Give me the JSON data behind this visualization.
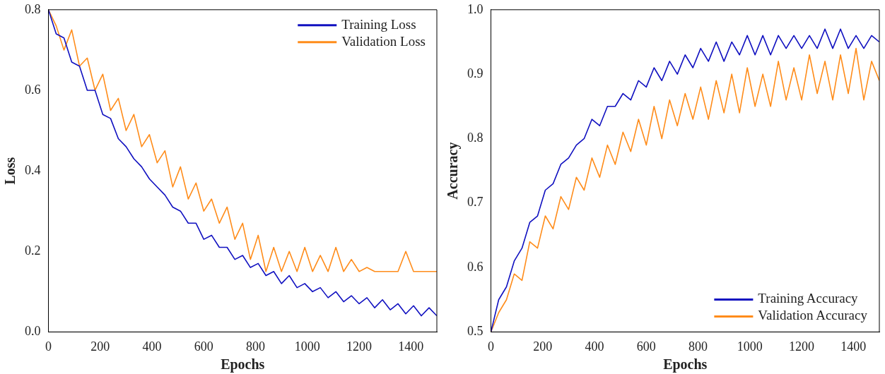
{
  "chart_data": [
    {
      "type": "line",
      "xlabel": "Epochs",
      "ylabel": "Loss",
      "xlim": [
        0,
        1500
      ],
      "xticks": [
        0,
        200,
        400,
        600,
        800,
        1000,
        1200,
        1400
      ],
      "ylim": [
        0,
        0.8
      ],
      "yticks": [
        {
          "value": 0,
          "label": "0.0"
        },
        0.2,
        0.4,
        0.6,
        0.8
      ],
      "grid": false,
      "legend": "top right",
      "marker": "none",
      "line_style": "solid",
      "x": [
        0,
        30,
        60,
        90,
        120,
        150,
        180,
        210,
        240,
        270,
        300,
        330,
        360,
        390,
        420,
        450,
        480,
        510,
        540,
        570,
        600,
        630,
        660,
        690,
        720,
        750,
        780,
        810,
        840,
        870,
        900,
        930,
        960,
        990,
        1020,
        1050,
        1080,
        1110,
        1140,
        1170,
        1200,
        1230,
        1260,
        1290,
        1320,
        1350,
        1380,
        1410,
        1440,
        1470,
        1500
      ],
      "series": [
        {
          "name": "Training Loss",
          "color": "#1010c0",
          "values": [
            0.8,
            0.74,
            0.73,
            0.67,
            0.66,
            0.6,
            0.6,
            0.54,
            0.53,
            0.48,
            0.46,
            0.43,
            0.41,
            0.38,
            0.36,
            0.34,
            0.31,
            0.3,
            0.27,
            0.27,
            0.23,
            0.24,
            0.21,
            0.21,
            0.18,
            0.19,
            0.16,
            0.17,
            0.14,
            0.15,
            0.12,
            0.14,
            0.11,
            0.12,
            0.1,
            0.11,
            0.085,
            0.1,
            0.075,
            0.09,
            0.07,
            0.085,
            0.06,
            0.08,
            0.055,
            0.07,
            0.045,
            0.065,
            0.04,
            0.06,
            0.04
          ]
        },
        {
          "name": "Validation Loss",
          "color": "#ff8c1a",
          "values": [
            0.8,
            0.76,
            0.7,
            0.75,
            0.66,
            0.68,
            0.6,
            0.64,
            0.55,
            0.58,
            0.5,
            0.54,
            0.46,
            0.49,
            0.42,
            0.45,
            0.36,
            0.41,
            0.33,
            0.37,
            0.3,
            0.33,
            0.27,
            0.31,
            0.23,
            0.27,
            0.18,
            0.24,
            0.15,
            0.21,
            0.15,
            0.2,
            0.15,
            0.21,
            0.15,
            0.19,
            0.15,
            0.21,
            0.15,
            0.18,
            0.15,
            0.16,
            0.15,
            0.15,
            0.15,
            0.15,
            0.2,
            0.15,
            0.15,
            0.15,
            0.15
          ]
        }
      ]
    },
    {
      "type": "line",
      "xlabel": "Epochs",
      "ylabel": "Accuracy",
      "xlim": [
        0,
        1500
      ],
      "xticks": [
        0,
        200,
        400,
        600,
        800,
        1000,
        1200,
        1400
      ],
      "ylim": [
        0.5,
        1.0
      ],
      "yticks": [
        0.5,
        0.6,
        0.7,
        0.8,
        0.9,
        {
          "value": 1,
          "label": "1.0"
        }
      ],
      "grid": false,
      "legend": "bottom right",
      "marker": "none",
      "line_style": "solid",
      "x": [
        0,
        30,
        60,
        90,
        120,
        150,
        180,
        210,
        240,
        270,
        300,
        330,
        360,
        390,
        420,
        450,
        480,
        510,
        540,
        570,
        600,
        630,
        660,
        690,
        720,
        750,
        780,
        810,
        840,
        870,
        900,
        930,
        960,
        990,
        1020,
        1050,
        1080,
        1110,
        1140,
        1170,
        1200,
        1230,
        1260,
        1290,
        1320,
        1350,
        1380,
        1410,
        1440,
        1470,
        1500
      ],
      "series": [
        {
          "name": "Training Accuracy",
          "color": "#1010c0",
          "values": [
            0.5,
            0.55,
            0.57,
            0.61,
            0.63,
            0.67,
            0.68,
            0.72,
            0.73,
            0.76,
            0.77,
            0.79,
            0.8,
            0.83,
            0.82,
            0.85,
            0.85,
            0.87,
            0.86,
            0.89,
            0.88,
            0.91,
            0.89,
            0.92,
            0.9,
            0.93,
            0.91,
            0.94,
            0.92,
            0.95,
            0.92,
            0.95,
            0.93,
            0.96,
            0.93,
            0.96,
            0.93,
            0.96,
            0.94,
            0.96,
            0.94,
            0.96,
            0.94,
            0.97,
            0.94,
            0.97,
            0.94,
            0.96,
            0.94,
            0.96,
            0.95
          ]
        },
        {
          "name": "Validation Accuracy",
          "color": "#ff8c1a",
          "values": [
            0.5,
            0.53,
            0.55,
            0.59,
            0.58,
            0.64,
            0.63,
            0.68,
            0.66,
            0.71,
            0.69,
            0.74,
            0.72,
            0.77,
            0.74,
            0.79,
            0.76,
            0.81,
            0.78,
            0.83,
            0.79,
            0.85,
            0.8,
            0.86,
            0.82,
            0.87,
            0.83,
            0.88,
            0.83,
            0.89,
            0.84,
            0.9,
            0.84,
            0.91,
            0.85,
            0.9,
            0.85,
            0.92,
            0.86,
            0.91,
            0.86,
            0.93,
            0.87,
            0.92,
            0.86,
            0.93,
            0.87,
            0.94,
            0.86,
            0.92,
            0.89
          ]
        }
      ]
    }
  ]
}
